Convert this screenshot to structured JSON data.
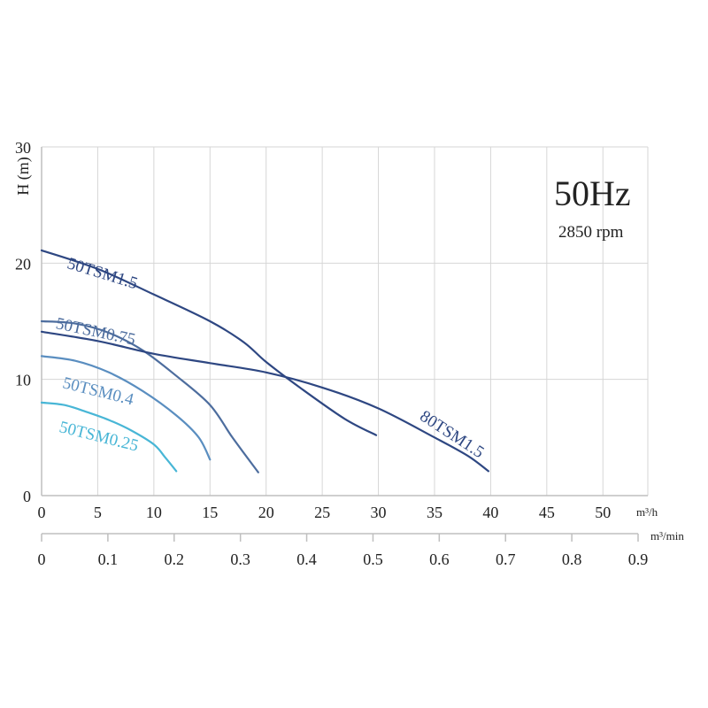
{
  "chart_data": {
    "type": "line",
    "annotations": {
      "frequency": "50Hz",
      "speed": "2850 rpm"
    },
    "ylabel": "H (m)",
    "ylim": [
      0,
      30
    ],
    "yticks": [
      0,
      10,
      20,
      30
    ],
    "x_primary": {
      "unit": "m³/h",
      "lim": [
        0,
        54
      ],
      "ticks": [
        0,
        5,
        10,
        15,
        20,
        25,
        30,
        35,
        40,
        45,
        50
      ]
    },
    "x_secondary": {
      "unit": "m³/min",
      "lim": [
        0,
        0.9
      ],
      "ticks": [
        0,
        0.1,
        0.2,
        0.3,
        0.4,
        0.5,
        0.6,
        0.7,
        0.8,
        0.9
      ],
      "tick_labels": [
        "0",
        "0.1",
        "0.2",
        "0.3",
        "0.4",
        "0.5",
        "0.6",
        "0.7",
        "0.8",
        "0.9"
      ]
    },
    "grid": true,
    "series": [
      {
        "name": "50TSM1.5",
        "color": "#2e4782",
        "points": [
          [
            0,
            21.1
          ],
          [
            5,
            19.5
          ],
          [
            10,
            17.3
          ],
          [
            15,
            15.0
          ],
          [
            18,
            13.2
          ],
          [
            20,
            11.5
          ],
          [
            23,
            9.3
          ],
          [
            27,
            6.6
          ],
          [
            29.8,
            5.2
          ]
        ]
      },
      {
        "name": "50TSM0.75",
        "color": "#4d6d9e",
        "points": [
          [
            0,
            15.0
          ],
          [
            3,
            14.8
          ],
          [
            6,
            14.0
          ],
          [
            9,
            12.5
          ],
          [
            12,
            10.3
          ],
          [
            15,
            7.8
          ],
          [
            17,
            5.0
          ],
          [
            19.3,
            2.0
          ]
        ]
      },
      {
        "name": "50TSM0.4",
        "color": "#5a8ec0",
        "points": [
          [
            0,
            12.0
          ],
          [
            3,
            11.6
          ],
          [
            6,
            10.6
          ],
          [
            9,
            9.0
          ],
          [
            12,
            6.9
          ],
          [
            14,
            5.0
          ],
          [
            15,
            3.1
          ]
        ]
      },
      {
        "name": "50TSM0.25",
        "color": "#48b6d6",
        "points": [
          [
            0,
            8.0
          ],
          [
            2,
            7.8
          ],
          [
            4,
            7.2
          ],
          [
            6,
            6.5
          ],
          [
            8,
            5.6
          ],
          [
            10,
            4.4
          ],
          [
            11,
            3.3
          ],
          [
            12,
            2.1
          ]
        ]
      },
      {
        "name": "80TSM1.5",
        "color": "#2e4782",
        "points": [
          [
            0,
            14.1
          ],
          [
            5,
            13.3
          ],
          [
            10,
            12.2
          ],
          [
            15,
            11.4
          ],
          [
            20,
            10.6
          ],
          [
            25,
            9.3
          ],
          [
            30,
            7.5
          ],
          [
            35,
            5.0
          ],
          [
            38,
            3.4
          ],
          [
            39.8,
            2.1
          ]
        ]
      }
    ]
  }
}
